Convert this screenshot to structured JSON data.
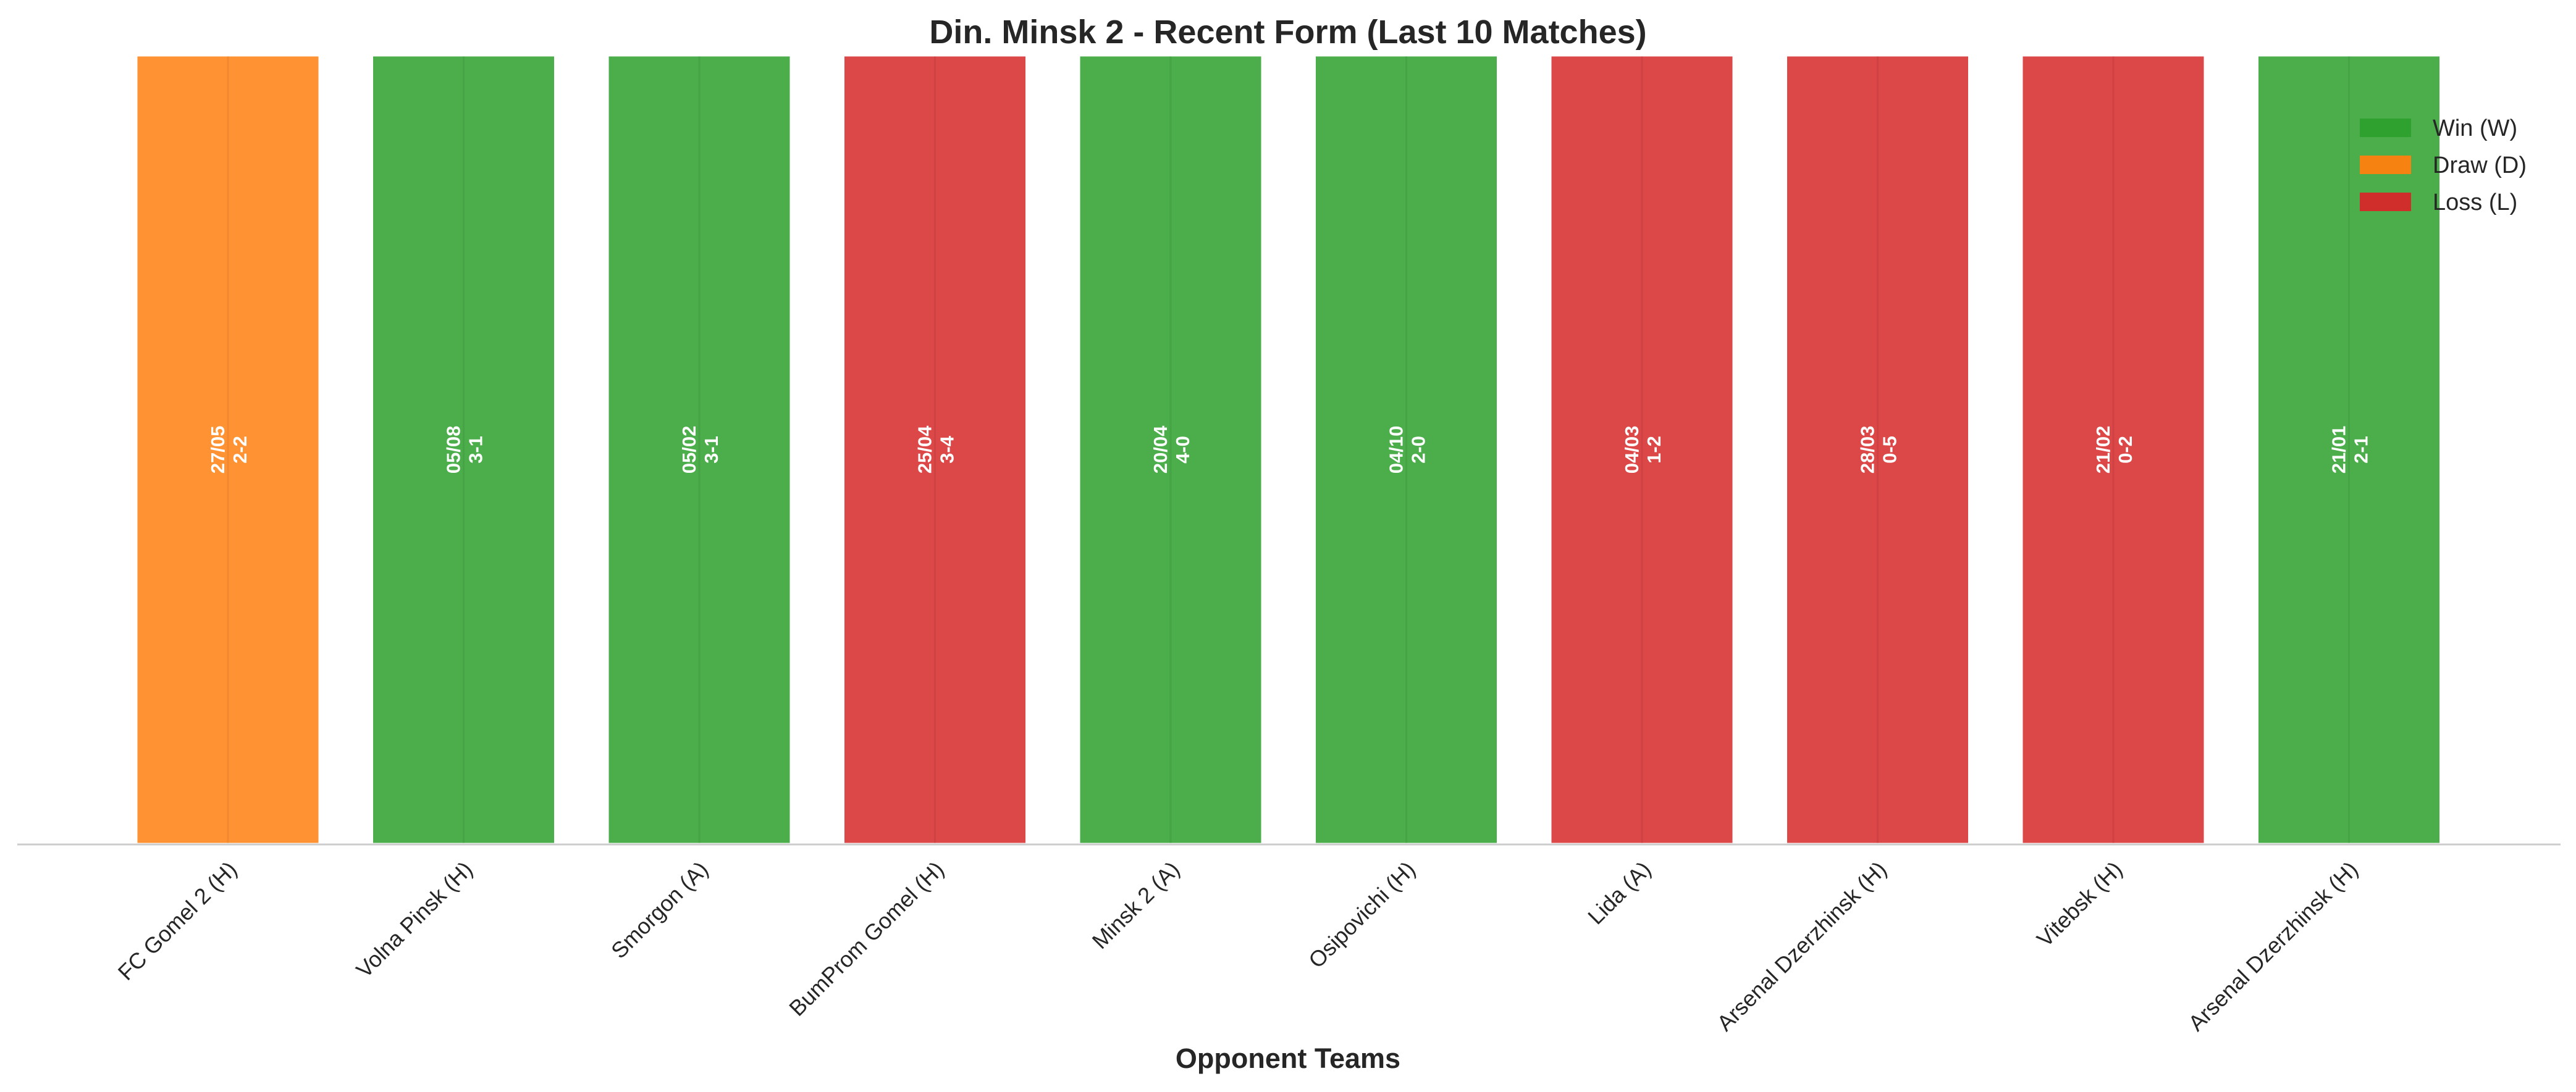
{
  "chart_data": {
    "type": "bar",
    "title": "Din. Minsk 2 - Recent Form (Last 10 Matches)",
    "xlabel": "Opponent Teams",
    "ylabel": "",
    "grid": false,
    "legend_position": "top-right",
    "categories": [
      "FC Gomel 2 (H)",
      "Volna Pinsk (H)",
      "Smorgon (A)",
      "BumProm Gomel (H)",
      "Minsk 2 (A)",
      "Osipovichi (H)",
      "Lida (A)",
      "Arsenal Dzerzhinsk (H)",
      "Vitebsk (H)",
      "Arsenal Dzerzhinsk (H)"
    ],
    "results": [
      "D",
      "W",
      "W",
      "L",
      "W",
      "W",
      "L",
      "L",
      "L",
      "W"
    ],
    "dates": [
      "27/05",
      "05/08",
      "05/02",
      "25/04",
      "20/04",
      "04/10",
      "04/03",
      "28/03",
      "21/02",
      "21/01"
    ],
    "scores": [
      "2-2",
      "3-1",
      "3-1",
      "3-4",
      "4-0",
      "2-0",
      "1-2",
      "0-5",
      "0-2",
      "2-1"
    ],
    "values": [
      1,
      1,
      1,
      1,
      1,
      1,
      1,
      1,
      1,
      1
    ],
    "ylim": [
      0,
      1.05
    ],
    "legend": [
      {
        "key": "W",
        "label": "Win (W)",
        "color": "#2ca02c"
      },
      {
        "key": "D",
        "label": "Draw (D)",
        "color": "#ff7f0e"
      },
      {
        "key": "L",
        "label": "Loss (L)",
        "color": "#d62728"
      }
    ]
  }
}
